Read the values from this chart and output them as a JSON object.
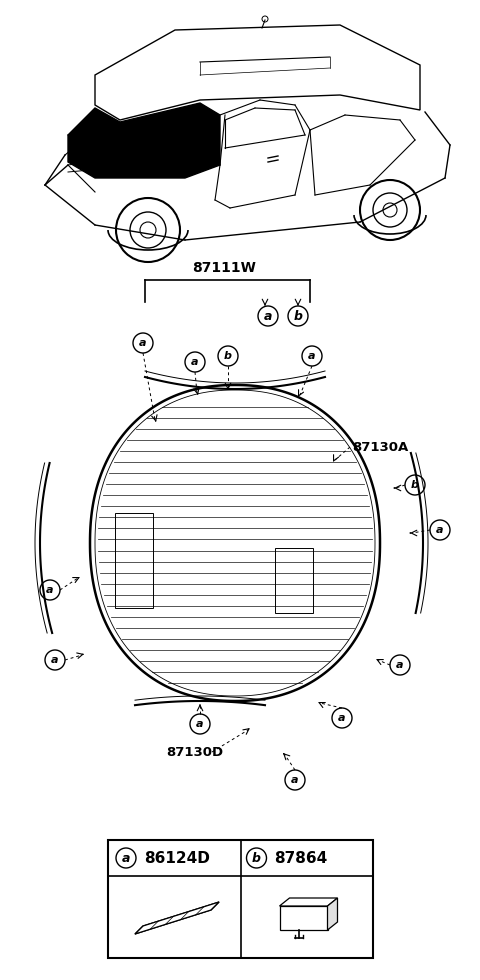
{
  "bg_color": "#ffffff",
  "part_label_87111W": "87111W",
  "part_label_87130A": "87130A",
  "part_label_87130D": "87130D",
  "legend_a_code": "86124D",
  "legend_b_code": "87864",
  "label_a": "a",
  "label_b": "b"
}
